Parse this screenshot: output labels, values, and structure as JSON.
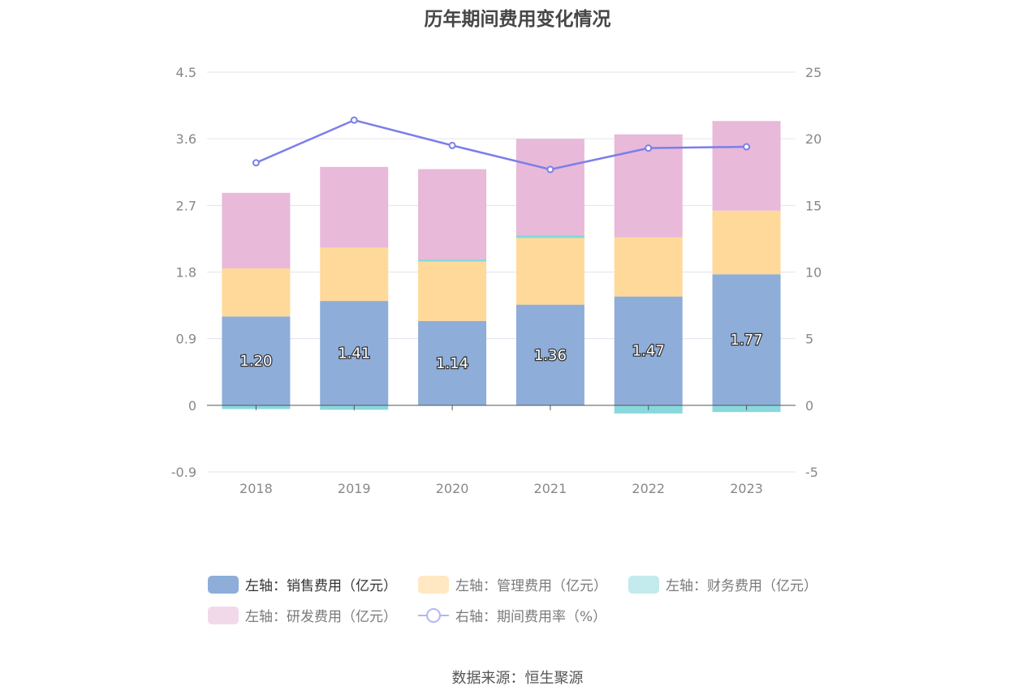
{
  "chart_data": {
    "type": "bar",
    "title": "历年期间费用变化情况",
    "categories": [
      "2018",
      "2019",
      "2020",
      "2021",
      "2022",
      "2023"
    ],
    "left_axis": {
      "ticks": [
        "-0.9",
        "0",
        "0.9",
        "1.8",
        "2.7",
        "3.6",
        "4.5"
      ],
      "ylim": [
        -0.9,
        4.5
      ]
    },
    "right_axis": {
      "ticks": [
        "-5",
        "0",
        "5",
        "10",
        "15",
        "20",
        "25"
      ],
      "ylim": [
        -5,
        25
      ]
    },
    "series": [
      {
        "name": "左轴：销售费用（亿元）",
        "axis": "left",
        "stack": true,
        "color": "#8eadd9",
        "values": [
          1.2,
          1.41,
          1.14,
          1.36,
          1.47,
          1.77
        ],
        "labels": [
          "1.20",
          "1.41",
          "1.14",
          "1.36",
          "1.47",
          "1.77"
        ]
      },
      {
        "name": "左轴：管理费用（亿元）",
        "axis": "left",
        "stack": true,
        "color": "#ffd999",
        "values": [
          0.65,
          0.72,
          0.8,
          0.9,
          0.8,
          0.86
        ]
      },
      {
        "name": "左轴：财务费用（亿元）",
        "axis": "left",
        "stack": true,
        "color": "#88d8dc",
        "values": [
          -0.05,
          -0.06,
          0.03,
          0.04,
          -0.11,
          -0.09
        ]
      },
      {
        "name": "左轴：研发费用（亿元）",
        "axis": "left",
        "stack": true,
        "color": "#e8b9d9",
        "values": [
          1.02,
          1.09,
          1.22,
          1.3,
          1.39,
          1.21
        ]
      },
      {
        "name": "右轴：期间费用率（%）",
        "axis": "right",
        "type": "line",
        "color": "#7b7fe9",
        "values": [
          18.2,
          21.4,
          19.5,
          17.7,
          19.3,
          19.4
        ]
      }
    ],
    "legend_position": "bottom",
    "grid": true
  },
  "source": "数据来源：恒生聚源"
}
